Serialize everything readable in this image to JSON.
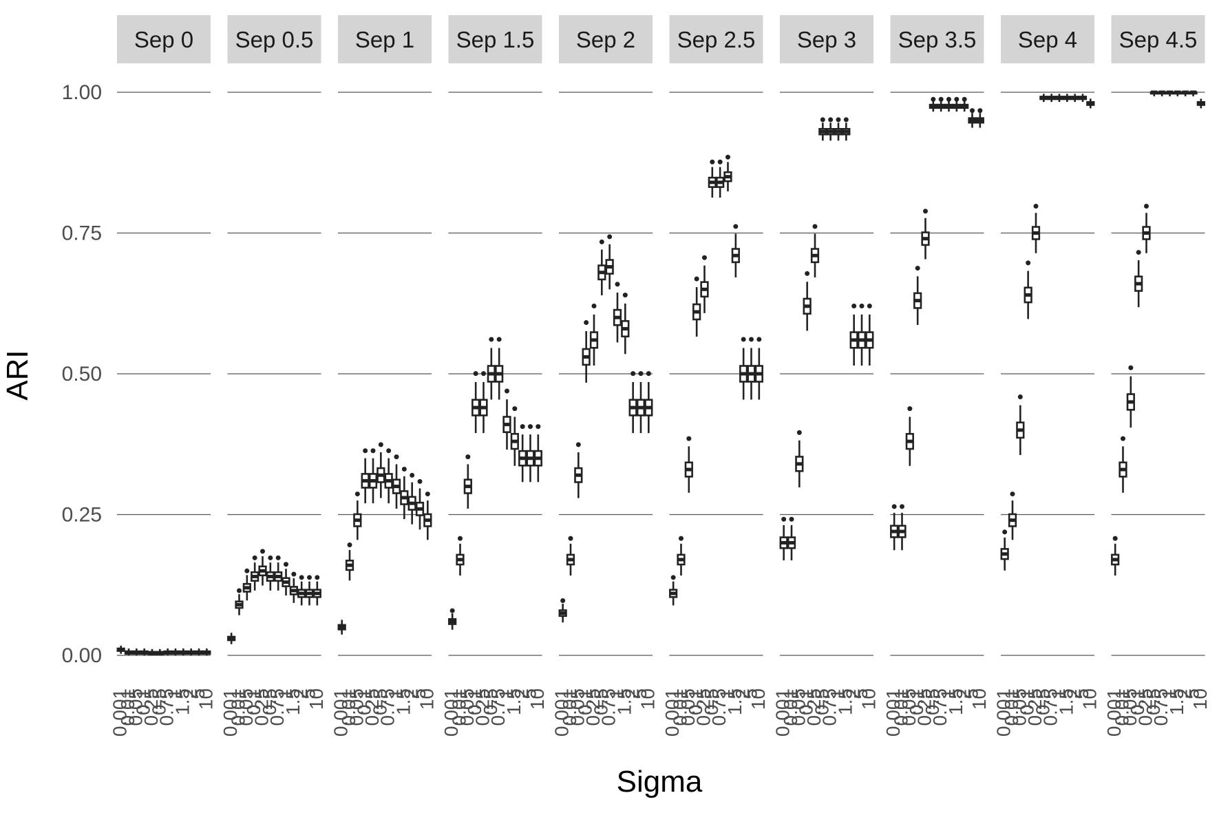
{
  "chart_data": {
    "type": "boxplot",
    "xlabel": "Sigma",
    "ylabel": "ARI",
    "ylim": [
      0,
      1
    ],
    "y_ticks": [
      "0.00",
      "0.25",
      "0.50",
      "0.75",
      "1.00"
    ],
    "grid": "horizontal major",
    "sigma_levels": [
      "0.001",
      "0.01",
      "0.05",
      "0.1",
      "0.25",
      "0.5",
      "0.75",
      "1",
      "1.5",
      "2",
      "5",
      "10"
    ],
    "panels": [
      {
        "label": "Sep 0",
        "medians": [
          0.01,
          0.005,
          0.005,
          0.005,
          0.004,
          0.004,
          0.005,
          0.005,
          0.005,
          0.005,
          0.005,
          0.005
        ]
      },
      {
        "label": "Sep 0.5",
        "medians": [
          0.03,
          0.09,
          0.12,
          0.14,
          0.15,
          0.14,
          0.14,
          0.13,
          0.115,
          0.11,
          0.11,
          0.11
        ]
      },
      {
        "label": "Sep 1",
        "medians": [
          0.05,
          0.16,
          0.24,
          0.31,
          0.31,
          0.32,
          0.31,
          0.3,
          0.28,
          0.27,
          0.26,
          0.24
        ]
      },
      {
        "label": "Sep 1.5",
        "medians": [
          0.06,
          0.17,
          0.3,
          0.44,
          0.44,
          0.5,
          0.5,
          0.41,
          0.38,
          0.35,
          0.35,
          0.35
        ]
      },
      {
        "label": "Sep 2",
        "medians": [
          0.075,
          0.17,
          0.32,
          0.53,
          0.56,
          0.68,
          0.69,
          0.6,
          0.58,
          0.44,
          0.44,
          0.44
        ]
      },
      {
        "label": "Sep 2.5",
        "medians": [
          0.11,
          0.17,
          0.33,
          0.61,
          0.65,
          0.84,
          0.84,
          0.85,
          0.71,
          0.5,
          0.5,
          0.5
        ]
      },
      {
        "label": "Sep 3",
        "medians": [
          0.2,
          0.2,
          0.34,
          0.62,
          0.71,
          0.93,
          0.93,
          0.93,
          0.93,
          0.56,
          0.56,
          0.56
        ]
      },
      {
        "label": "Sep 3.5",
        "medians": [
          0.22,
          0.22,
          0.38,
          0.63,
          0.74,
          0.975,
          0.975,
          0.975,
          0.975,
          0.975,
          0.95,
          0.95
        ]
      },
      {
        "label": "Sep 4",
        "medians": [
          0.18,
          0.24,
          0.4,
          0.64,
          0.75,
          0.99,
          0.99,
          0.99,
          0.99,
          0.99,
          0.99,
          0.98
        ]
      },
      {
        "label": "Sep 4.5",
        "medians": [
          0.17,
          0.33,
          0.45,
          0.66,
          0.75,
          1.0,
          1.0,
          1.0,
          1.0,
          1.0,
          1.0,
          0.98
        ]
      }
    ]
  }
}
